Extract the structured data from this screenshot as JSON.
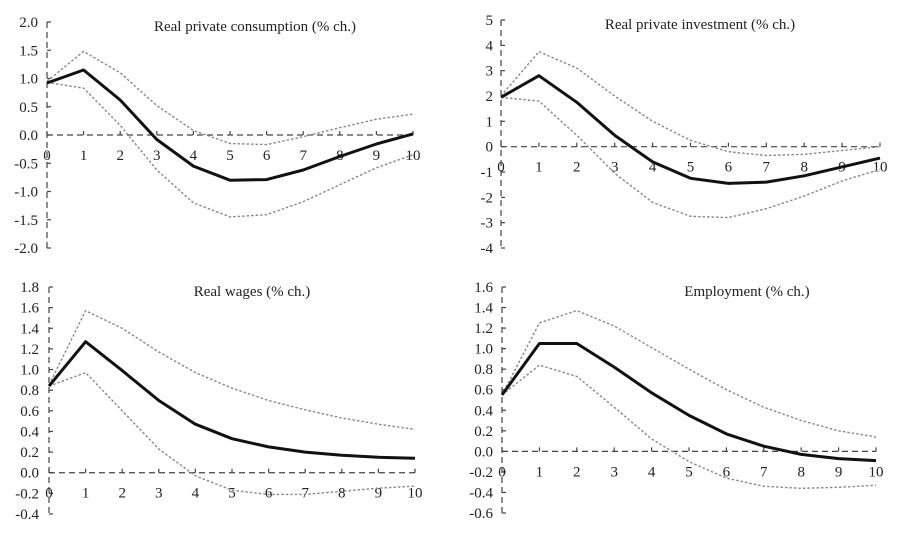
{
  "chart_data": [
    {
      "type": "line",
      "title": "Real private consumption (% ch.)",
      "x": [
        0,
        1,
        2,
        3,
        4,
        5,
        6,
        7,
        8,
        9,
        10
      ],
      "x_tick_labels": [
        "0",
        "1",
        "2",
        "3",
        "4",
        "5",
        "6",
        "7",
        "8",
        "9",
        "10"
      ],
      "y_tick_labels": [
        "2.0",
        "1.5",
        "1.0",
        "0.5",
        "0.0",
        "-0.5",
        "-1.0",
        "-1.5",
        "-2.0"
      ],
      "y_ticks": [
        2.0,
        1.5,
        1.0,
        0.5,
        0.0,
        -0.5,
        -1.0,
        -1.5,
        -2.0
      ],
      "ylim": [
        -2.0,
        2.0
      ],
      "xlim": [
        0,
        10
      ],
      "series": [
        {
          "name": "response",
          "style": "solid",
          "values": [
            0.92,
            1.15,
            0.62,
            -0.08,
            -0.55,
            -0.8,
            -0.79,
            -0.62,
            -0.38,
            -0.16,
            0.02
          ]
        },
        {
          "name": "upper",
          "style": "dotted",
          "values": [
            0.95,
            1.48,
            1.1,
            0.52,
            0.08,
            -0.15,
            -0.17,
            -0.03,
            0.13,
            0.28,
            0.37
          ]
        },
        {
          "name": "lower",
          "style": "dotted",
          "values": [
            0.93,
            0.83,
            0.17,
            -0.62,
            -1.2,
            -1.45,
            -1.41,
            -1.18,
            -0.88,
            -0.58,
            -0.35
          ]
        }
      ]
    },
    {
      "type": "line",
      "title": "Real private investment (% ch.)",
      "x": [
        0,
        1,
        2,
        3,
        4,
        5,
        6,
        7,
        8,
        9,
        10
      ],
      "x_tick_labels": [
        "0",
        "1",
        "2",
        "3",
        "4",
        "5",
        "6",
        "7",
        "8",
        "9",
        "10"
      ],
      "y_tick_labels": [
        "5",
        "4",
        "3",
        "2",
        "1",
        "0",
        "-1",
        "-2",
        "-3",
        "-4"
      ],
      "y_ticks": [
        5,
        4,
        3,
        2,
        1,
        0,
        -1,
        -2,
        -3,
        -4
      ],
      "ylim": [
        -4,
        5
      ],
      "xlim": [
        0,
        10
      ],
      "series": [
        {
          "name": "response",
          "style": "solid",
          "values": [
            1.95,
            2.8,
            1.75,
            0.45,
            -0.6,
            -1.25,
            -1.45,
            -1.4,
            -1.15,
            -0.8,
            -0.45
          ]
        },
        {
          "name": "upper",
          "style": "dotted",
          "values": [
            2.0,
            3.75,
            3.1,
            2.0,
            1.0,
            0.25,
            -0.2,
            -0.35,
            -0.3,
            -0.15,
            0.0
          ]
        },
        {
          "name": "lower",
          "style": "dotted",
          "values": [
            1.95,
            1.8,
            0.45,
            -1.05,
            -2.2,
            -2.75,
            -2.8,
            -2.45,
            -1.95,
            -1.35,
            -0.9
          ]
        }
      ]
    },
    {
      "type": "line",
      "title": "Real wages (% ch.)",
      "x": [
        0,
        1,
        2,
        3,
        4,
        5,
        6,
        7,
        8,
        9,
        10
      ],
      "x_tick_labels": [
        "0",
        "1",
        "2",
        "3",
        "4",
        "5",
        "6",
        "7",
        "8",
        "9",
        "10"
      ],
      "y_tick_labels": [
        "1.8",
        "1.6",
        "1.4",
        "1.2",
        "1.0",
        "0.8",
        "0.6",
        "0.4",
        "0.2",
        "0.0",
        "-0.2",
        "-0.4"
      ],
      "y_ticks": [
        1.8,
        1.6,
        1.4,
        1.2,
        1.0,
        0.8,
        0.6,
        0.4,
        0.2,
        0.0,
        -0.2,
        -0.4
      ],
      "ylim": [
        -0.4,
        1.8
      ],
      "xlim": [
        0,
        10
      ],
      "series": [
        {
          "name": "response",
          "style": "solid",
          "values": [
            0.84,
            1.27,
            0.99,
            0.7,
            0.47,
            0.33,
            0.25,
            0.2,
            0.17,
            0.15,
            0.14
          ]
        },
        {
          "name": "upper",
          "style": "dotted",
          "values": [
            0.85,
            1.57,
            1.4,
            1.17,
            0.97,
            0.82,
            0.7,
            0.61,
            0.53,
            0.47,
            0.42
          ]
        },
        {
          "name": "lower",
          "style": "dotted",
          "values": [
            0.84,
            0.97,
            0.6,
            0.23,
            -0.03,
            -0.17,
            -0.21,
            -0.21,
            -0.18,
            -0.15,
            -0.13
          ]
        }
      ]
    },
    {
      "type": "line",
      "title": "Employment (% ch.)",
      "x": [
        0,
        1,
        2,
        3,
        4,
        5,
        6,
        7,
        8,
        9,
        10
      ],
      "x_tick_labels": [
        "0",
        "1",
        "2",
        "3",
        "4",
        "5",
        "6",
        "7",
        "8",
        "9",
        "10"
      ],
      "y_tick_labels": [
        "1.6",
        "1.4",
        "1.2",
        "1.0",
        "0.8",
        "0.6",
        "0.4",
        "0.2",
        "0.0",
        "-0.2",
        "-0.4",
        "-0.6"
      ],
      "y_ticks": [
        1.6,
        1.4,
        1.2,
        1.0,
        0.8,
        0.6,
        0.4,
        0.2,
        0.0,
        -0.2,
        -0.4,
        -0.6
      ],
      "ylim": [
        -0.6,
        1.6
      ],
      "xlim": [
        0,
        10
      ],
      "series": [
        {
          "name": "response",
          "style": "solid",
          "values": [
            0.55,
            1.05,
            1.05,
            0.82,
            0.57,
            0.35,
            0.17,
            0.05,
            -0.03,
            -0.07,
            -0.09
          ]
        },
        {
          "name": "upper",
          "style": "dotted",
          "values": [
            0.55,
            1.25,
            1.37,
            1.22,
            1.01,
            0.8,
            0.6,
            0.43,
            0.3,
            0.2,
            0.14
          ]
        },
        {
          "name": "lower",
          "style": "dotted",
          "values": [
            0.55,
            0.84,
            0.73,
            0.43,
            0.12,
            -0.1,
            -0.26,
            -0.34,
            -0.36,
            -0.35,
            -0.33
          ]
        }
      ]
    }
  ]
}
